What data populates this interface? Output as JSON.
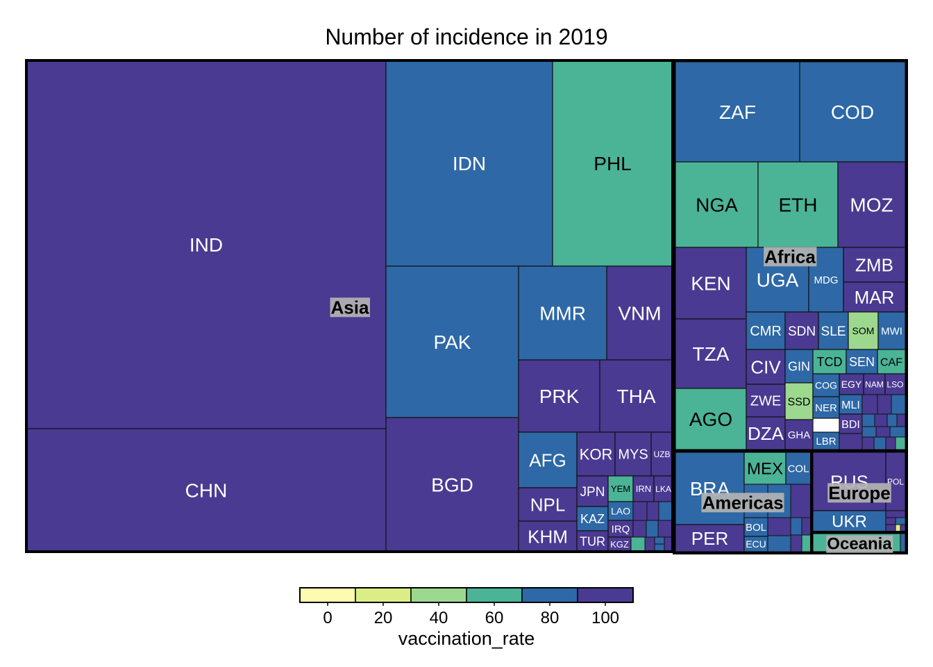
{
  "chart_data": {
    "type": "treemap",
    "title": "Number of incidence in 2019",
    "colorbar": {
      "label": "vaccination_rate",
      "ticks": [
        0,
        20,
        40,
        60,
        80,
        100
      ],
      "range": [
        -10,
        110
      ],
      "bins": [
        {
          "from": -10,
          "to": 10,
          "color": "#fdfbb0"
        },
        {
          "from": 10,
          "to": 30,
          "color": "#dbee86"
        },
        {
          "from": 30,
          "to": 50,
          "color": "#9cd98f"
        },
        {
          "from": 50,
          "to": 70,
          "color": "#4bb396"
        },
        {
          "from": 70,
          "to": 90,
          "color": "#2e68a6"
        },
        {
          "from": 90,
          "to": 110,
          "color": "#4a3a92"
        }
      ]
    },
    "groups": [
      {
        "name": "Asia",
        "label": "Asia"
      },
      {
        "name": "Africa",
        "label": "Africa"
      },
      {
        "name": "Americas",
        "label": "Americas"
      },
      {
        "name": "Europe",
        "label": "Europe"
      },
      {
        "name": "Oceania",
        "label": "Oceania"
      }
    ],
    "tiles": [
      {
        "label": "IND",
        "group": "Asia",
        "vaccination_rate": 90
      },
      {
        "label": "CHN",
        "group": "Asia",
        "vaccination_rate": 99
      },
      {
        "label": "IDN",
        "group": "Asia",
        "vaccination_rate": 85
      },
      {
        "label": "PHL",
        "group": "Asia",
        "vaccination_rate": 65
      },
      {
        "label": "PAK",
        "group": "Asia",
        "vaccination_rate": 86
      },
      {
        "label": "BGD",
        "group": "Asia",
        "vaccination_rate": 98
      },
      {
        "label": "MMR",
        "group": "Asia",
        "vaccination_rate": 82
      },
      {
        "label": "VNM",
        "group": "Asia",
        "vaccination_rate": 96
      },
      {
        "label": "PRK",
        "group": "Asia",
        "vaccination_rate": 96
      },
      {
        "label": "THA",
        "group": "Asia",
        "vaccination_rate": 99
      },
      {
        "label": "AFG",
        "group": "Asia",
        "vaccination_rate": 78
      },
      {
        "label": "NPL",
        "group": "Asia",
        "vaccination_rate": 93
      },
      {
        "label": "KHM",
        "group": "Asia",
        "vaccination_rate": 93
      },
      {
        "label": "KOR",
        "group": "Asia",
        "vaccination_rate": 97
      },
      {
        "label": "MYS",
        "group": "Asia",
        "vaccination_rate": 98
      },
      {
        "label": "UZB",
        "group": "Asia",
        "vaccination_rate": 99
      },
      {
        "label": "JPN",
        "group": "Asia",
        "vaccination_rate": 99
      },
      {
        "label": "YEM",
        "group": "Asia",
        "vaccination_rate": 62
      },
      {
        "label": "IRN",
        "group": "Asia",
        "vaccination_rate": 99
      },
      {
        "label": "LKA",
        "group": "Asia",
        "vaccination_rate": 99
      },
      {
        "label": "KAZ",
        "group": "Asia",
        "vaccination_rate": 85
      },
      {
        "label": "LAO",
        "group": "Asia",
        "vaccination_rate": 80
      },
      {
        "label": "IRQ",
        "group": "Asia",
        "vaccination_rate": 93
      },
      {
        "label": "TUR",
        "group": "Asia",
        "vaccination_rate": 96
      },
      {
        "label": "KGZ",
        "group": "Asia",
        "vaccination_rate": 96
      },
      {
        "label": "ZAF",
        "group": "Africa",
        "vaccination_rate": 77
      },
      {
        "label": "COD",
        "group": "Africa",
        "vaccination_rate": 76
      },
      {
        "label": "NGA",
        "group": "Africa",
        "vaccination_rate": 66
      },
      {
        "label": "ETH",
        "group": "Africa",
        "vaccination_rate": 62
      },
      {
        "label": "MOZ",
        "group": "Africa",
        "vaccination_rate": 95
      },
      {
        "label": "KEN",
        "group": "Africa",
        "vaccination_rate": 92
      },
      {
        "label": "UGA",
        "group": "Africa",
        "vaccination_rate": 87
      },
      {
        "label": "MDG",
        "group": "Africa",
        "vaccination_rate": 75
      },
      {
        "label": "ZMB",
        "group": "Africa",
        "vaccination_rate": 94
      },
      {
        "label": "MAR",
        "group": "Africa",
        "vaccination_rate": 99
      },
      {
        "label": "TZA",
        "group": "Africa",
        "vaccination_rate": 93
      },
      {
        "label": "AGO",
        "group": "Africa",
        "vaccination_rate": 65
      },
      {
        "label": "CMR",
        "group": "Africa",
        "vaccination_rate": 81
      },
      {
        "label": "SDN",
        "group": "Africa",
        "vaccination_rate": 90
      },
      {
        "label": "SLE",
        "group": "Africa",
        "vaccination_rate": 82
      },
      {
        "label": "SOM",
        "group": "Africa",
        "vaccination_rate": 42
      },
      {
        "label": "MWI",
        "group": "Africa",
        "vaccination_rate": 88
      },
      {
        "label": "CIV",
        "group": "Africa",
        "vaccination_rate": 95
      },
      {
        "label": "GIN",
        "group": "Africa",
        "vaccination_rate": 72
      },
      {
        "label": "TCD",
        "group": "Africa",
        "vaccination_rate": 50
      },
      {
        "label": "SEN",
        "group": "Africa",
        "vaccination_rate": 88
      },
      {
        "label": "CAF",
        "group": "Africa",
        "vaccination_rate": 60
      },
      {
        "label": "ZWE",
        "group": "Africa",
        "vaccination_rate": 90
      },
      {
        "label": "SSD",
        "group": "Africa",
        "vaccination_rate": 49
      },
      {
        "label": "COG",
        "group": "Africa",
        "vaccination_rate": 70
      },
      {
        "label": "EGY",
        "group": "Africa",
        "vaccination_rate": 94
      },
      {
        "label": "NAM",
        "group": "Africa",
        "vaccination_rate": 92
      },
      {
        "label": "LSO",
        "group": "Africa",
        "vaccination_rate": 90
      },
      {
        "label": "MLI",
        "group": "Africa",
        "vaccination_rate": 77
      },
      {
        "label": "DZA",
        "group": "Africa",
        "vaccination_rate": 99
      },
      {
        "label": "GHA",
        "group": "Africa",
        "vaccination_rate": 94
      },
      {
        "label": "NER",
        "group": "Africa",
        "vaccination_rate": 72
      },
      {
        "label": "BDI",
        "group": "Africa",
        "vaccination_rate": 90
      },
      {
        "label": "LBR",
        "group": "Africa",
        "vaccination_rate": 80
      },
      {
        "label": "BRA",
        "group": "Americas",
        "vaccination_rate": 80
      },
      {
        "label": "MEX",
        "group": "Americas",
        "vaccination_rate": 68
      },
      {
        "label": "COL",
        "group": "Americas",
        "vaccination_rate": 89
      },
      {
        "label": "PER",
        "group": "Americas",
        "vaccination_rate": 92
      },
      {
        "label": "BOL",
        "group": "Americas",
        "vaccination_rate": 77
      },
      {
        "label": "ECU",
        "group": "Americas",
        "vaccination_rate": 75
      },
      {
        "label": "RUS",
        "group": "Europe",
        "vaccination_rate": 96
      },
      {
        "label": "POL",
        "group": "Europe",
        "vaccination_rate": 94
      },
      {
        "label": "UKR",
        "group": "Europe",
        "vaccination_rate": 78
      },
      {
        "label": "Oceania",
        "group": "Oceania",
        "vaccination_rate": 50
      }
    ]
  }
}
